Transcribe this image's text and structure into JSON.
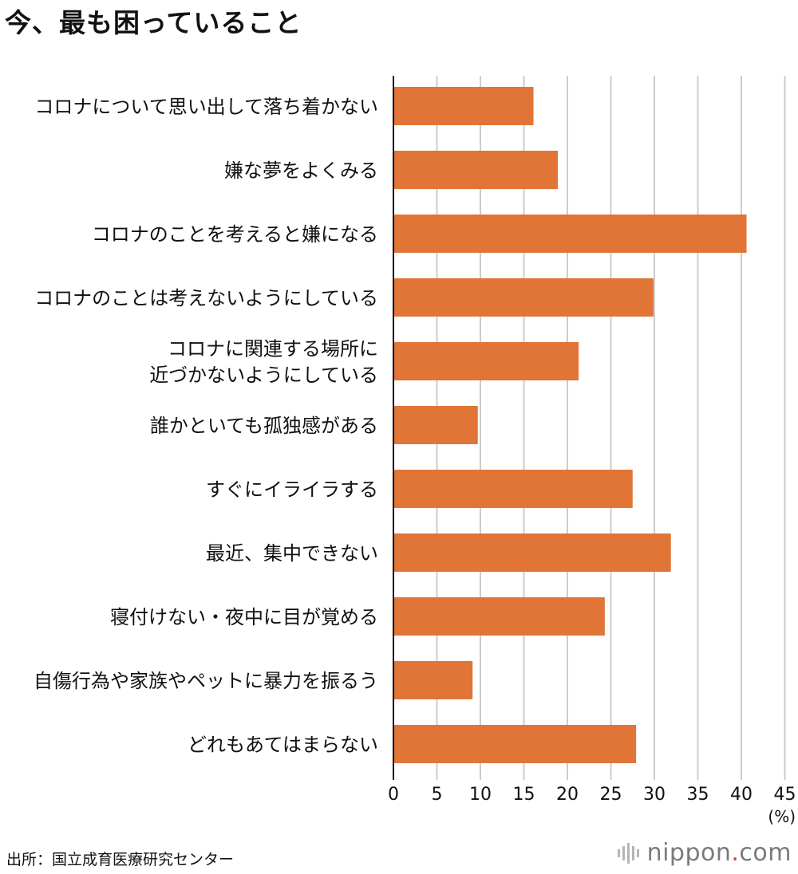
{
  "chart_data": {
    "type": "bar",
    "orientation": "horizontal",
    "title": "今、最も困っていること",
    "categories": [
      [
        "コロナについて思い出して落ち着かない"
      ],
      [
        "嫌な夢をよくみる"
      ],
      [
        "コロナのことを考えると嫌になる"
      ],
      [
        "コロナのことは考えないようにしている"
      ],
      [
        "コロナに関連する場所に",
        "近づかないようにしている"
      ],
      [
        "誰かといても孤独感がある"
      ],
      [
        "すぐにイライラする"
      ],
      [
        "最近、集中できない"
      ],
      [
        "寝付けない・夜中に目が覚める"
      ],
      [
        "自傷行為や家族やペットに暴力を振るう"
      ],
      [
        "どれもあてはまらない"
      ]
    ],
    "values": [
      16.1,
      18.9,
      40.6,
      29.9,
      21.3,
      9.7,
      27.5,
      31.9,
      24.3,
      9.1,
      27.9
    ],
    "xlim": [
      0,
      45
    ],
    "xticks": [
      0,
      5,
      10,
      15,
      20,
      25,
      30,
      35,
      40,
      45
    ],
    "unit": "(%)",
    "grid": true,
    "bar_color": "#e07537",
    "grid_color": "#cccccc"
  },
  "source": "出所：国立成育医療研究センター",
  "brand": {
    "name": "nippon",
    "dot": ".",
    "suffix": "com"
  }
}
